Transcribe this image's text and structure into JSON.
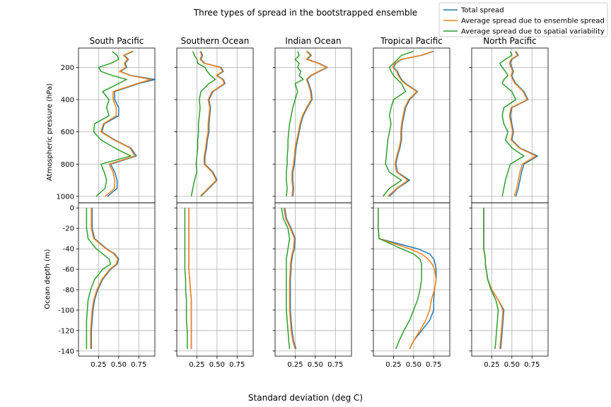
{
  "chart_data": {
    "type": "line",
    "title": "Three types of spread in the bootstrapped ensemble",
    "xlabel": "Standard deviation (deg C)",
    "ylabel_top": "Atmospheric pressure (hPa)",
    "ylabel_bottom": "Ocean depth (m)",
    "panels": [
      "South Pacific",
      "Southern Ocean",
      "Indian Ocean",
      "Tropical Pacific",
      "North Pacific"
    ],
    "x_ticks": [
      0.25,
      0.5,
      0.75
    ],
    "x_tick_labels": [
      "0.25",
      "0.50",
      "0.75"
    ],
    "xlim": [
      0.0,
      0.95
    ],
    "top_yticks": [
      200,
      400,
      600,
      800,
      1000
    ],
    "top_ylim": [
      1040,
      80
    ],
    "bottom_yticks": [
      0,
      -20,
      -40,
      -60,
      -80,
      -100,
      -120,
      -140
    ],
    "bottom_ylim": [
      -145,
      5
    ],
    "grid": true,
    "legend_position": "top-right",
    "series": [
      {
        "name": "Total spread",
        "color": "#1f77b4"
      },
      {
        "name": "Average spread due to ensemble spread",
        "color": "#ff7f0e"
      },
      {
        "name": "Average spread due to spatial variability",
        "color": "#2ca02c"
      }
    ],
    "atmosphere": {
      "pressure": [
        100,
        125,
        150,
        175,
        200,
        225,
        250,
        275,
        300,
        350,
        400,
        450,
        500,
        550,
        600,
        650,
        700,
        750,
        800,
        850,
        900,
        950,
        1000
      ],
      "South Pacific": {
        "total": [
          0.68,
          0.57,
          0.62,
          0.58,
          0.6,
          0.52,
          0.65,
          0.95,
          0.75,
          0.45,
          0.45,
          0.5,
          0.5,
          0.32,
          0.29,
          0.45,
          0.65,
          0.72,
          0.4,
          0.45,
          0.48,
          0.48,
          0.36
        ],
        "ensemble": [
          0.67,
          0.56,
          0.61,
          0.57,
          0.59,
          0.51,
          0.64,
          0.9,
          0.73,
          0.43,
          0.43,
          0.47,
          0.47,
          0.31,
          0.28,
          0.44,
          0.64,
          0.7,
          0.38,
          0.43,
          0.45,
          0.45,
          0.33
        ],
        "spatial": [
          0.42,
          0.48,
          0.5,
          0.4,
          0.25,
          0.28,
          0.42,
          0.6,
          0.5,
          0.3,
          0.38,
          0.35,
          0.38,
          0.2,
          0.19,
          0.28,
          0.45,
          0.65,
          0.28,
          0.32,
          0.35,
          0.33,
          0.22
        ]
      },
      "Southern Ocean": {
        "total": [
          0.3,
          0.32,
          0.3,
          0.35,
          0.55,
          0.58,
          0.5,
          0.58,
          0.6,
          0.45,
          0.4,
          0.42,
          0.41,
          0.4,
          0.4,
          0.38,
          0.37,
          0.35,
          0.35,
          0.45,
          0.5,
          0.4,
          0.3
        ],
        "ensemble": [
          0.29,
          0.31,
          0.29,
          0.34,
          0.54,
          0.57,
          0.49,
          0.57,
          0.59,
          0.44,
          0.39,
          0.41,
          0.4,
          0.39,
          0.39,
          0.37,
          0.36,
          0.34,
          0.34,
          0.44,
          0.49,
          0.39,
          0.29
        ],
        "spatial": [
          0.2,
          0.22,
          0.25,
          0.26,
          0.35,
          0.38,
          0.42,
          0.48,
          0.4,
          0.3,
          0.28,
          0.29,
          0.28,
          0.27,
          0.27,
          0.26,
          0.26,
          0.25,
          0.24,
          0.25,
          0.22,
          0.2,
          0.18
        ]
      },
      "Indian Ocean": {
        "total": [
          0.4,
          0.45,
          0.4,
          0.55,
          0.65,
          0.55,
          0.45,
          0.4,
          0.42,
          0.45,
          0.46,
          0.4,
          0.35,
          0.32,
          0.3,
          0.28,
          0.26,
          0.25,
          0.24,
          0.22,
          0.22,
          0.23,
          0.22
        ],
        "ensemble": [
          0.39,
          0.44,
          0.39,
          0.54,
          0.64,
          0.54,
          0.44,
          0.39,
          0.41,
          0.44,
          0.45,
          0.39,
          0.34,
          0.31,
          0.29,
          0.27,
          0.25,
          0.24,
          0.23,
          0.21,
          0.21,
          0.22,
          0.21
        ],
        "spatial": [
          0.28,
          0.3,
          0.25,
          0.3,
          0.28,
          0.32,
          0.3,
          0.35,
          0.25,
          0.28,
          0.25,
          0.22,
          0.2,
          0.18,
          0.17,
          0.16,
          0.16,
          0.15,
          0.15,
          0.14,
          0.14,
          0.15,
          0.14
        ]
      },
      "Tropical Pacific": {
        "total": [
          0.75,
          0.6,
          0.35,
          0.28,
          0.25,
          0.3,
          0.32,
          0.35,
          0.4,
          0.55,
          0.45,
          0.4,
          0.38,
          0.36,
          0.35,
          0.35,
          0.33,
          0.3,
          0.28,
          0.3,
          0.45,
          0.3,
          0.2
        ],
        "ensemble": [
          0.74,
          0.59,
          0.34,
          0.27,
          0.24,
          0.29,
          0.31,
          0.34,
          0.39,
          0.54,
          0.44,
          0.39,
          0.37,
          0.35,
          0.34,
          0.34,
          0.32,
          0.29,
          0.27,
          0.29,
          0.43,
          0.29,
          0.18
        ],
        "spatial": [
          0.5,
          0.35,
          0.3,
          0.25,
          0.2,
          0.22,
          0.25,
          0.3,
          0.35,
          0.4,
          0.25,
          0.22,
          0.2,
          0.22,
          0.2,
          0.18,
          0.17,
          0.16,
          0.15,
          0.2,
          0.35,
          0.2,
          0.12
        ]
      },
      "North Pacific": {
        "total": [
          0.55,
          0.58,
          0.5,
          0.48,
          0.5,
          0.52,
          0.5,
          0.52,
          0.55,
          0.65,
          0.7,
          0.5,
          0.48,
          0.5,
          0.52,
          0.5,
          0.6,
          0.82,
          0.65,
          0.62,
          0.6,
          0.58,
          0.55
        ],
        "ensemble": [
          0.54,
          0.57,
          0.49,
          0.47,
          0.49,
          0.51,
          0.49,
          0.51,
          0.54,
          0.64,
          0.69,
          0.49,
          0.47,
          0.49,
          0.51,
          0.49,
          0.59,
          0.8,
          0.63,
          0.6,
          0.58,
          0.56,
          0.53
        ],
        "spatial": [
          0.48,
          0.5,
          0.42,
          0.35,
          0.38,
          0.42,
          0.45,
          0.4,
          0.38,
          0.5,
          0.55,
          0.4,
          0.38,
          0.4,
          0.45,
          0.42,
          0.5,
          0.65,
          0.48,
          0.45,
          0.42,
          0.4,
          0.38
        ]
      }
    },
    "ocean": {
      "depth": [
        0,
        -10,
        -20,
        -30,
        -40,
        -45,
        -50,
        -55,
        -60,
        -70,
        -80,
        -90,
        -100,
        -110,
        -120,
        -130,
        -138
      ],
      "South Pacific": {
        "total": [
          0.17,
          0.17,
          0.17,
          0.2,
          0.35,
          0.45,
          0.5,
          0.48,
          0.4,
          0.3,
          0.24,
          0.2,
          0.18,
          0.17,
          0.16,
          0.16,
          0.16
        ],
        "ensemble": [
          0.16,
          0.16,
          0.16,
          0.19,
          0.34,
          0.44,
          0.49,
          0.47,
          0.39,
          0.29,
          0.23,
          0.19,
          0.17,
          0.16,
          0.15,
          0.15,
          0.15
        ],
        "spatial": [
          0.1,
          0.1,
          0.1,
          0.12,
          0.22,
          0.3,
          0.38,
          0.4,
          0.3,
          0.2,
          0.15,
          0.12,
          0.11,
          0.1,
          0.1,
          0.1,
          0.1
        ]
      },
      "Southern Ocean": {
        "total": [
          0.15,
          0.15,
          0.15,
          0.15,
          0.15,
          0.15,
          0.15,
          0.15,
          0.15,
          0.16,
          0.17,
          0.18,
          0.18,
          0.18,
          0.18,
          0.18,
          0.18
        ],
        "ensemble": [
          0.15,
          0.15,
          0.15,
          0.15,
          0.15,
          0.15,
          0.15,
          0.15,
          0.15,
          0.16,
          0.17,
          0.18,
          0.18,
          0.18,
          0.18,
          0.18,
          0.18
        ],
        "spatial": [
          0.1,
          0.1,
          0.1,
          0.1,
          0.1,
          0.1,
          0.1,
          0.1,
          0.1,
          0.11,
          0.11,
          0.12,
          0.12,
          0.12,
          0.13,
          0.13,
          0.13
        ]
      },
      "Indian Ocean": {
        "total": [
          0.12,
          0.14,
          0.2,
          0.25,
          0.24,
          0.22,
          0.21,
          0.2,
          0.2,
          0.19,
          0.19,
          0.19,
          0.19,
          0.2,
          0.21,
          0.23,
          0.26
        ],
        "ensemble": [
          0.11,
          0.13,
          0.19,
          0.24,
          0.23,
          0.21,
          0.2,
          0.19,
          0.19,
          0.18,
          0.18,
          0.18,
          0.18,
          0.19,
          0.2,
          0.22,
          0.25
        ],
        "spatial": [
          0.08,
          0.1,
          0.16,
          0.18,
          0.16,
          0.15,
          0.14,
          0.14,
          0.14,
          0.14,
          0.14,
          0.14,
          0.14,
          0.15,
          0.16,
          0.17,
          0.18
        ]
      },
      "Tropical Pacific": {
        "total": [
          0.06,
          0.06,
          0.06,
          0.07,
          0.55,
          0.7,
          0.75,
          0.77,
          0.78,
          0.78,
          0.76,
          0.75,
          0.75,
          0.7,
          0.6,
          0.5,
          0.45
        ],
        "ensemble": [
          0.06,
          0.06,
          0.06,
          0.07,
          0.45,
          0.6,
          0.68,
          0.73,
          0.76,
          0.78,
          0.76,
          0.72,
          0.7,
          0.65,
          0.58,
          0.5,
          0.45
        ],
        "spatial": [
          0.06,
          0.06,
          0.06,
          0.07,
          0.35,
          0.5,
          0.58,
          0.6,
          0.6,
          0.6,
          0.58,
          0.55,
          0.5,
          0.45,
          0.38,
          0.32,
          0.28
        ]
      },
      "North Pacific": {
        "total": [
          0.15,
          0.15,
          0.15,
          0.15,
          0.15,
          0.16,
          0.17,
          0.17,
          0.18,
          0.2,
          0.25,
          0.33,
          0.4,
          0.39,
          0.38,
          0.37,
          0.36
        ],
        "ensemble": [
          0.15,
          0.15,
          0.15,
          0.15,
          0.15,
          0.16,
          0.17,
          0.17,
          0.18,
          0.2,
          0.25,
          0.33,
          0.39,
          0.38,
          0.37,
          0.36,
          0.35
        ],
        "spatial": [
          0.15,
          0.15,
          0.15,
          0.15,
          0.15,
          0.16,
          0.17,
          0.17,
          0.18,
          0.2,
          0.24,
          0.3,
          0.33,
          0.32,
          0.31,
          0.3,
          0.29
        ]
      }
    }
  }
}
